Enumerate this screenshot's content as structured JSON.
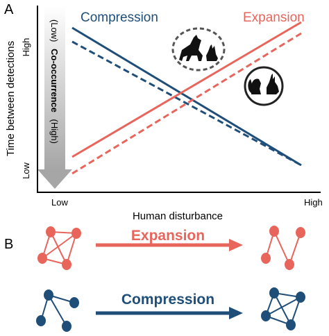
{
  "panel_a": {
    "label": "A",
    "y_axis_label": "Time between detections",
    "y_high": "High",
    "y_low": "Low",
    "x_low": "Low",
    "x_high": "High",
    "x_axis_label": "Human disturbance",
    "compression_label": "Compression",
    "expansion_label": "Expansion",
    "cooccurrence": {
      "low": "(Low)",
      "title": "Co-occurrence",
      "high": "(High)"
    }
  },
  "panel_b": {
    "label": "B",
    "expansion_label": "Expansion",
    "compression_label": "Compression"
  },
  "colors": {
    "compression": "#1f4e79",
    "expansion": "#e8655c",
    "axis": "#000000"
  },
  "icons": {
    "predator_prey_group": "wolf-and-rabbit-silhouette-icon",
    "prey_group": "squirrel-and-rabbit-silhouette-icon"
  }
}
